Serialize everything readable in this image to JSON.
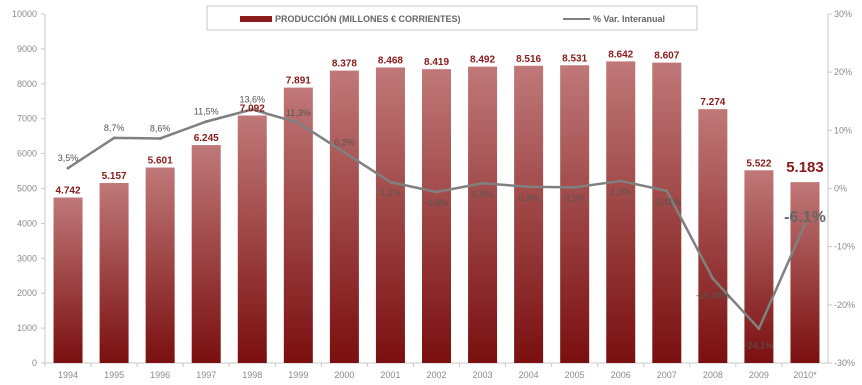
{
  "chart_data": {
    "type": "bar",
    "categories": [
      "1994",
      "1995",
      "1996",
      "1997",
      "1998",
      "1999",
      "2000",
      "2001",
      "2002",
      "2003",
      "2004",
      "2005",
      "2006",
      "2007",
      "2008",
      "2009",
      "2010*"
    ],
    "series": [
      {
        "name": "PRODUCCIÓN (MILLONES € CORRIENTES)",
        "type": "bar",
        "axis": "left",
        "values": [
          4742,
          5157,
          5601,
          6245,
          7092,
          7891,
          8378,
          8468,
          8419,
          8492,
          8516,
          8531,
          8642,
          8607,
          7274,
          5522,
          5183
        ],
        "labels": [
          "4.742",
          "5.157",
          "5.601",
          "6.245",
          "7.092",
          "7.891",
          "8.378",
          "8.468",
          "8.419",
          "8.492",
          "8.516",
          "8.531",
          "8.642",
          "8.607",
          "7.274",
          "5.522",
          "5.183"
        ],
        "color": "#8b1a1a"
      },
      {
        "name": "% Var. Interanual",
        "type": "line",
        "axis": "right",
        "values": [
          3.5,
          8.7,
          8.6,
          11.5,
          13.6,
          11.3,
          6.2,
          1.1,
          -0.6,
          0.9,
          0.3,
          0.2,
          1.3,
          -0.41,
          -15.48,
          -24.1,
          -6.1
        ],
        "labels": [
          "3,5%",
          "8,7%",
          "8,6%",
          "11,5%",
          "13,6%",
          "11,3%",
          "6,2%",
          "1,1%",
          "-0,6%",
          "0,9%",
          "0,3%",
          "0,2%",
          "1,3%",
          "-0,41%",
          "-15,48%",
          "-24,1%",
          "-6.1%"
        ],
        "color": "#7f7f7f"
      }
    ],
    "y_left": {
      "ylim": [
        0,
        10000
      ],
      "ticks": [
        "0",
        "1000",
        "2000",
        "3000",
        "4000",
        "5000",
        "6000",
        "7000",
        "8000",
        "9000",
        "10000"
      ]
    },
    "y_right": {
      "ylim": [
        -30,
        30
      ],
      "ticks": [
        "-30%",
        "-20%",
        "-10%",
        "0%",
        "10%",
        "20%",
        "30%"
      ]
    },
    "legend": {
      "position": "top"
    },
    "grid": false
  }
}
